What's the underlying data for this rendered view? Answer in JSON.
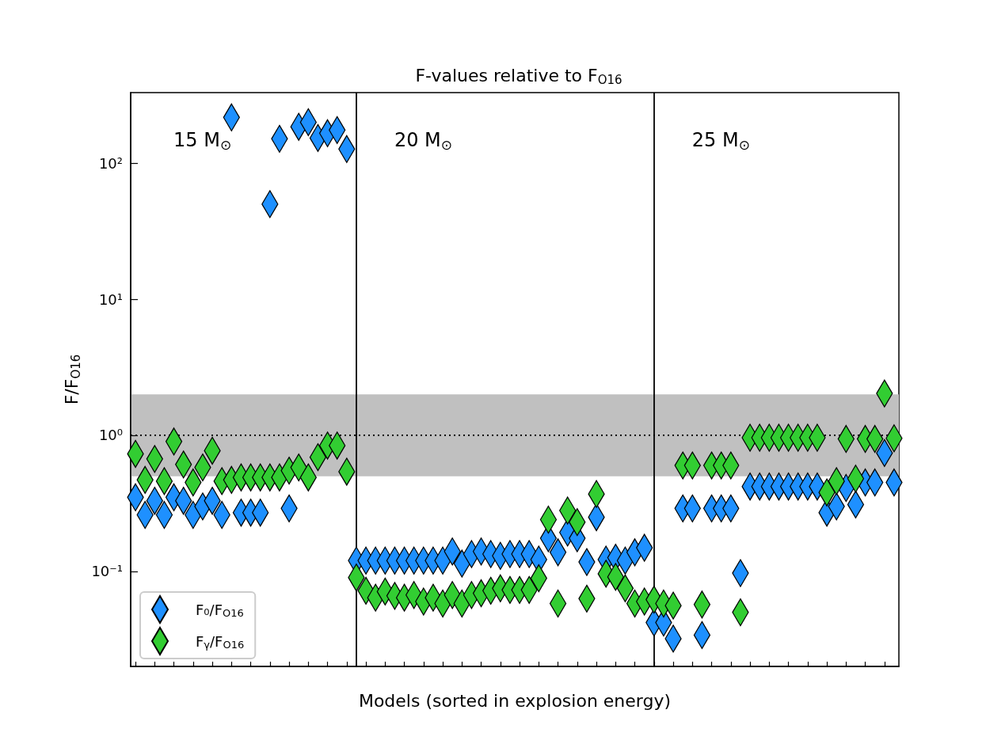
{
  "chart_data": {
    "type": "scatter",
    "title": "F-values relative to F$_{O16}$",
    "xlabel": "Models (sorted in explosion energy)",
    "ylabel": "F/F$_{O16}$",
    "annotations": [
      "15 M$_{⊙}$",
      "20 M$_{⊙}$",
      "25 M$_{⊙}$"
    ],
    "categories": [
      null,
      null,
      null,
      null,
      null,
      null,
      null,
      null,
      null,
      null,
      null,
      null,
      null,
      null,
      null,
      null,
      null,
      null,
      null,
      null,
      null,
      null,
      null,
      null,
      null,
      null,
      null,
      null,
      null,
      null,
      null,
      null,
      null,
      null,
      null,
      null,
      null,
      null,
      null,
      null,
      null,
      null,
      null,
      null,
      null,
      null,
      null,
      null,
      null,
      null,
      null,
      null,
      null,
      null,
      null,
      null,
      null,
      null,
      null,
      null,
      null,
      null,
      null,
      null,
      null,
      null,
      null,
      null,
      null,
      null,
      null,
      null,
      null,
      null,
      null,
      null,
      null,
      null,
      null,
      null
    ],
    "series": [
      {
        "name": "F₀/F$_{O16}$",
        "color": "#1e90ff",
        "values": [
          0.35,
          0.26,
          0.33,
          0.26,
          0.35,
          0.33,
          0.26,
          0.3,
          0.33,
          0.26,
          217,
          0.27,
          0.27,
          0.27,
          50,
          151,
          0.29,
          185,
          200,
          153,
          166,
          175,
          127,
          0.12,
          0.12,
          0.12,
          0.12,
          0.12,
          0.12,
          0.12,
          0.12,
          0.12,
          0.12,
          0.14,
          0.114,
          0.134,
          0.14,
          0.134,
          0.13,
          0.134,
          0.134,
          0.134,
          0.122,
          0.175,
          0.138,
          0.193,
          0.175,
          0.117,
          0.25,
          0.122,
          0.126,
          0.12,
          0.138,
          0.149,
          0.042,
          0.042,
          0.032,
          0.29,
          0.29,
          0.034,
          0.29,
          0.29,
          0.29,
          0.097,
          0.42,
          0.42,
          0.42,
          0.42,
          0.42,
          0.42,
          0.42,
          0.42,
          0.27,
          0.3,
          0.41,
          0.31,
          0.45,
          0.45,
          0.74,
          0.45
        ]
      },
      {
        "name": "F$_{γ}$/F$_{O16}$",
        "color": "#32cd32",
        "values": [
          0.73,
          0.47,
          0.67,
          0.46,
          0.9,
          0.61,
          0.45,
          0.58,
          0.77,
          0.46,
          0.47,
          0.49,
          0.49,
          0.49,
          0.49,
          0.49,
          0.55,
          0.58,
          0.49,
          0.69,
          0.84,
          0.84,
          0.54,
          0.09,
          0.072,
          0.064,
          0.071,
          0.066,
          0.064,
          0.067,
          0.06,
          0.064,
          0.058,
          0.067,
          0.058,
          0.067,
          0.069,
          0.072,
          0.075,
          0.073,
          0.073,
          0.073,
          0.089,
          0.24,
          0.058,
          0.28,
          0.23,
          0.063,
          0.37,
          0.096,
          0.091,
          0.075,
          0.058,
          0.06,
          0.062,
          0.058,
          0.056,
          0.6,
          0.6,
          0.057,
          0.6,
          0.6,
          0.6,
          0.05,
          0.96,
          0.96,
          0.96,
          0.96,
          0.96,
          0.96,
          0.96,
          0.96,
          0.38,
          0.46,
          0.94,
          0.48,
          0.94,
          0.94,
          2.03,
          0.95
        ]
      }
    ],
    "ylim": [
      0.02,
      330
    ],
    "yticks": [
      {
        "value": 0.1,
        "label": "10⁻¹"
      },
      {
        "value": 1,
        "label": "10⁰"
      },
      {
        "value": 10,
        "label": "10¹"
      },
      {
        "value": 100,
        "label": "10²"
      }
    ],
    "log": "y",
    "tick_labels": "y",
    "grid": false,
    "legend": "bottom left",
    "marker": "diamond",
    "ref_lines": [
      {
        "axis": "y",
        "value": 1,
        "line_style": "dotted",
        "color": "#000000"
      }
    ],
    "bands": [
      {
        "axis": "y",
        "from": 0.5,
        "to": 2,
        "color": "#c0c0c0"
      }
    ]
  }
}
